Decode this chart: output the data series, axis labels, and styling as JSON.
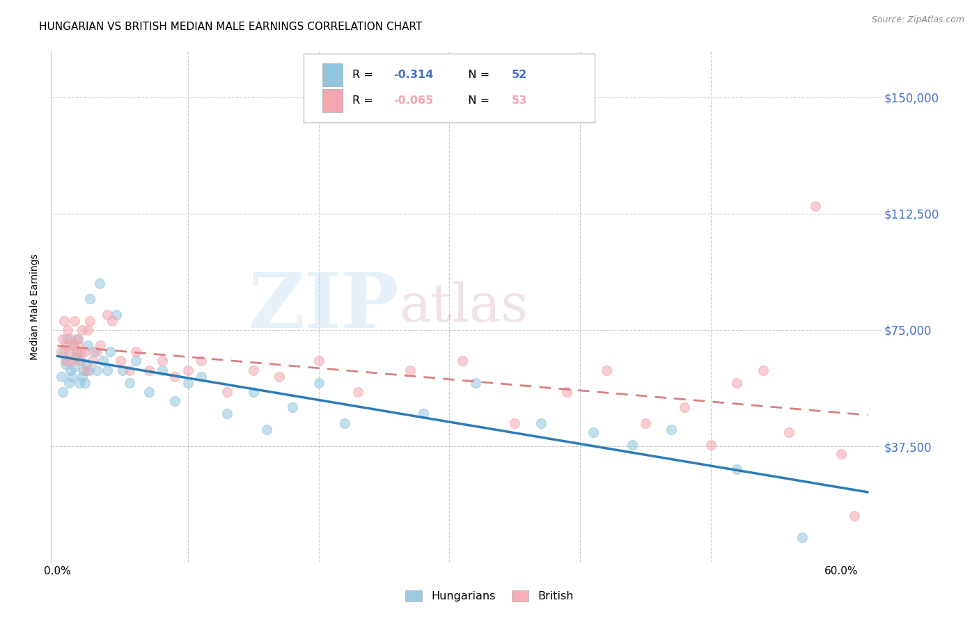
{
  "title": "HUNGARIAN VS BRITISH MEDIAN MALE EARNINGS CORRELATION CHART",
  "source": "Source: ZipAtlas.com",
  "ylabel": "Median Male Earnings",
  "ytick_labels": [
    "$37,500",
    "$75,000",
    "$112,500",
    "$150,000"
  ],
  "ytick_values": [
    37500,
    75000,
    112500,
    150000
  ],
  "ymin": 0,
  "ymax": 165000,
  "xmin": -0.005,
  "xmax": 0.63,
  "blue_color": "#92c5de",
  "pink_color": "#f4a6b0",
  "blue_line_color": "#2c7bb6",
  "pink_line_color": "#d98080",
  "ytick_color": "#4472C4",
  "watermark_zip": "ZIP",
  "watermark_atlas": "atlas",
  "legend_r1": "R = ",
  "legend_v1": "-0.314",
  "legend_n1": "N = 52",
  "legend_r2": "R = ",
  "legend_v2": "-0.065",
  "legend_n2": "N = 53",
  "title_fontsize": 11,
  "source_fontsize": 9,
  "axis_label_fontsize": 10,
  "tick_fontsize": 11,
  "marker_size": 100,
  "marker_alpha": 0.55,
  "hungarian_x": [
    0.003,
    0.004,
    0.005,
    0.006,
    0.007,
    0.008,
    0.009,
    0.01,
    0.011,
    0.012,
    0.013,
    0.014,
    0.015,
    0.016,
    0.017,
    0.018,
    0.019,
    0.02,
    0.021,
    0.022,
    0.023,
    0.024,
    0.025,
    0.028,
    0.03,
    0.032,
    0.035,
    0.038,
    0.04,
    0.045,
    0.05,
    0.055,
    0.06,
    0.07,
    0.08,
    0.09,
    0.1,
    0.11,
    0.13,
    0.15,
    0.16,
    0.18,
    0.2,
    0.22,
    0.28,
    0.32,
    0.37,
    0.41,
    0.44,
    0.47,
    0.52,
    0.57
  ],
  "hungarian_y": [
    60000,
    55000,
    68000,
    64000,
    72000,
    65000,
    58000,
    62000,
    60000,
    70000,
    63000,
    66000,
    68000,
    72000,
    58000,
    65000,
    60000,
    62000,
    58000,
    64000,
    70000,
    62000,
    85000,
    68000,
    62000,
    90000,
    65000,
    62000,
    68000,
    80000,
    62000,
    58000,
    65000,
    55000,
    62000,
    52000,
    58000,
    60000,
    48000,
    55000,
    43000,
    50000,
    58000,
    45000,
    48000,
    58000,
    45000,
    42000,
    38000,
    43000,
    30000,
    8000
  ],
  "british_x": [
    0.003,
    0.004,
    0.005,
    0.006,
    0.007,
    0.008,
    0.009,
    0.01,
    0.011,
    0.012,
    0.013,
    0.014,
    0.015,
    0.016,
    0.017,
    0.018,
    0.019,
    0.021,
    0.022,
    0.023,
    0.025,
    0.027,
    0.03,
    0.033,
    0.038,
    0.042,
    0.048,
    0.055,
    0.06,
    0.07,
    0.08,
    0.09,
    0.1,
    0.11,
    0.13,
    0.15,
    0.17,
    0.2,
    0.23,
    0.27,
    0.31,
    0.35,
    0.39,
    0.42,
    0.45,
    0.48,
    0.5,
    0.52,
    0.54,
    0.56,
    0.58,
    0.6,
    0.61
  ],
  "british_y": [
    68000,
    72000,
    78000,
    65000,
    70000,
    75000,
    68000,
    72000,
    65000,
    70000,
    78000,
    68000,
    72000,
    70000,
    65000,
    68000,
    75000,
    68000,
    62000,
    75000,
    78000,
    65000,
    68000,
    70000,
    80000,
    78000,
    65000,
    62000,
    68000,
    62000,
    65000,
    60000,
    62000,
    65000,
    55000,
    62000,
    60000,
    65000,
    55000,
    62000,
    65000,
    45000,
    55000,
    62000,
    45000,
    50000,
    38000,
    58000,
    62000,
    42000,
    115000,
    35000,
    15000
  ]
}
